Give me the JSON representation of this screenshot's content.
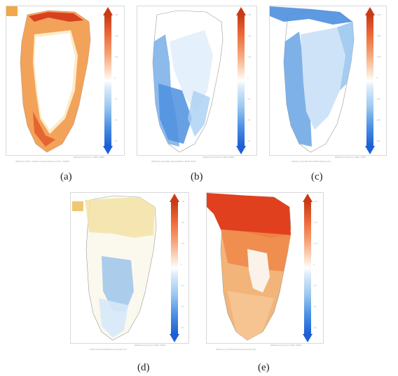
{
  "panels": [
    {
      "id": "a",
      "label": "(a)",
      "reference_period": "Reference period: 1961-1990",
      "caption": "2018 (b) Solid: Surface mass balance 2 Dec. Depth",
      "ticks": [
        "+30",
        "+25",
        "+20",
        "+15",
        "+10",
        "+5",
        "0",
        "-5",
        "-10",
        "-15",
        "-20",
        "-25",
        "-30"
      ],
      "palette": "warm",
      "colors": {
        "high": "#d83a1e",
        "mid": "#f4c27a",
        "low": "#fbf3dc"
      }
    },
    {
      "id": "b",
      "label": "(b)",
      "reference_period": "Reference period: 1961-1990",
      "caption": "2018 (b) Anomaly Precipitation 2015-2017",
      "ticks": [
        "+30",
        "+25",
        "+20",
        "+15",
        "+10",
        "+5",
        "0",
        "-5",
        "-10",
        "-15",
        "-20",
        "-25",
        "-30"
      ],
      "palette": "cool",
      "colors": {
        "high": "#2f74d0",
        "mid": "#9ec8ef",
        "low": "#e6f1fb"
      }
    },
    {
      "id": "c",
      "label": "(c)",
      "reference_period": "Reference period: 1961-1990",
      "caption": "2018 (c) Surface Runoff Anomaly [%]",
      "ticks": [
        "+300",
        "+250",
        "+200",
        "+150",
        "+100",
        "+50",
        "0",
        "-50",
        "-100",
        "-150",
        "-200",
        "-250",
        "-300"
      ],
      "palette": "cool",
      "colors": {
        "high": "#2a6fd0",
        "mid": "#8ec0ef",
        "low": "#e3f0fb"
      }
    },
    {
      "id": "d",
      "label": "(d)",
      "reference_period": "Reference period: 1961-1990",
      "caption": "2018 (d) Precipitation anomaly [%]",
      "ticks": [
        "+30",
        "+25",
        "+20",
        "+15",
        "+10",
        "+5",
        "0",
        "-5",
        "-10",
        "-15",
        "-20",
        "-25",
        "-30"
      ],
      "palette": "mixed-light",
      "colors": {
        "high": "#9cc6ea",
        "mid": "#f6f4ea",
        "low": "#f3e3a6"
      }
    },
    {
      "id": "e",
      "label": "(e)",
      "reference_period": "Reference period: 1961-1990",
      "caption": "2018 (e) Air Temperature anomaly [K]",
      "ticks": [
        "+3.0",
        "+2.5",
        "+2.0",
        "+1.5",
        "+1.0",
        "+0.5",
        "0",
        "-0.5",
        "-1.0",
        "-1.5",
        "-2.0",
        "-2.5",
        "-3.0"
      ],
      "palette": "warm-strong",
      "colors": {
        "high": "#e0401e",
        "mid": "#f0a86a",
        "low": "#fbe7d3"
      }
    }
  ]
}
